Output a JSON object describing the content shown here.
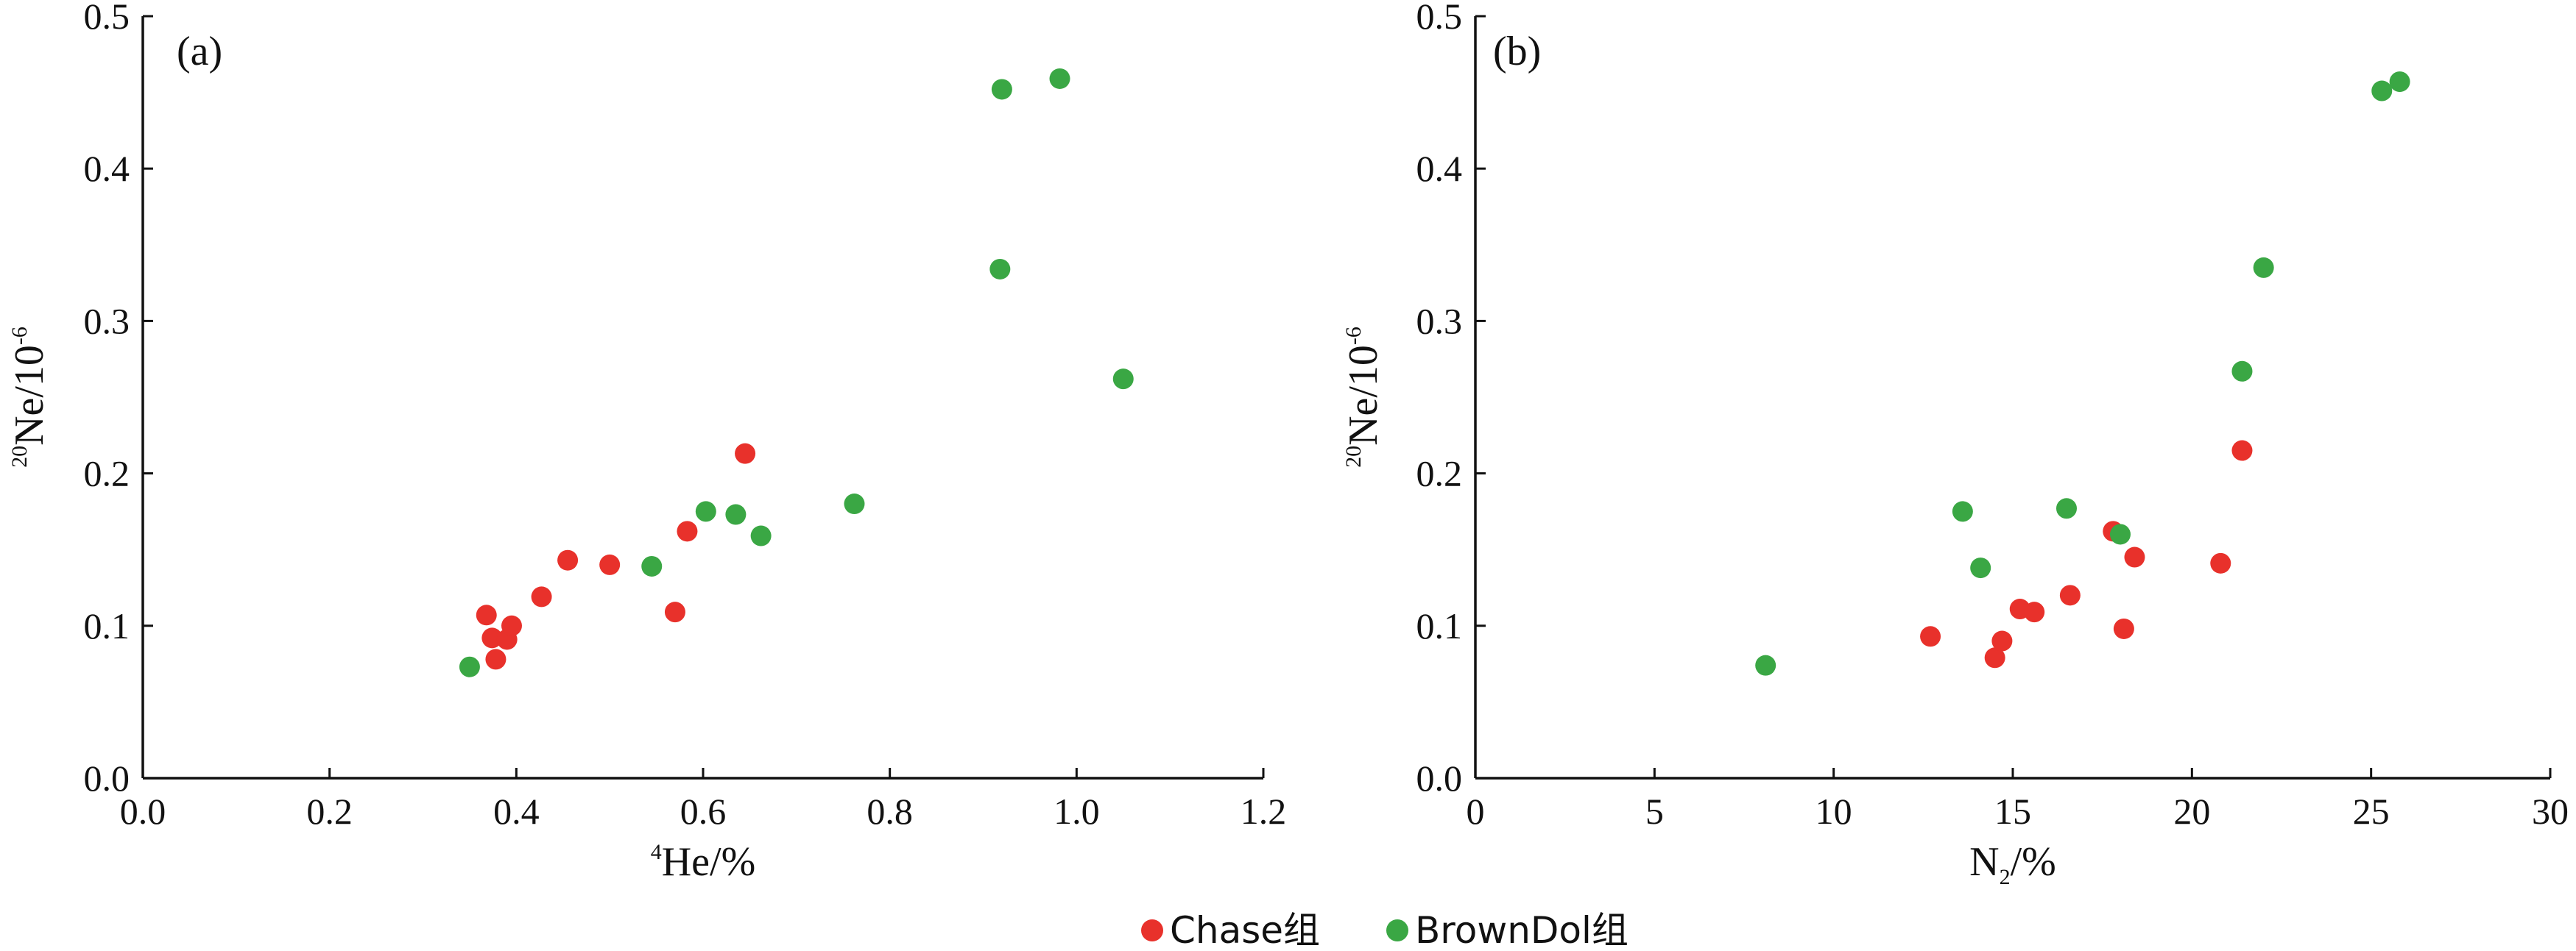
{
  "colors": {
    "chase": "#e8312b",
    "browndol": "#3aa744",
    "axis": "#111111"
  },
  "legend": {
    "items": [
      {
        "label": "Chase组",
        "color": "#e8312b"
      },
      {
        "label": "BrownDol组",
        "color": "#3aa744"
      }
    ]
  },
  "chart_data": [
    {
      "type": "scatter",
      "panel_label": "(a)",
      "ylabel": {
        "sup": "20",
        "main": "Ne/10",
        "exp": "-6"
      },
      "xlabel": {
        "sup": "4",
        "main": "He/%"
      },
      "xlim": [
        0,
        1.2
      ],
      "ylim": [
        0,
        0.5
      ],
      "xticks": [
        "0.0",
        "0.2",
        "0.4",
        "0.6",
        "0.8",
        "1.0",
        "1.2"
      ],
      "yticks": [
        "0.0",
        "0.1",
        "0.2",
        "0.3",
        "0.4",
        "0.5"
      ],
      "grid": false,
      "series": [
        {
          "name": "Chase组",
          "color": "#e8312b",
          "points": [
            [
              0.368,
              0.107
            ],
            [
              0.374,
              0.092
            ],
            [
              0.378,
              0.078
            ],
            [
              0.39,
              0.091
            ],
            [
              0.395,
              0.1
            ],
            [
              0.427,
              0.119
            ],
            [
              0.455,
              0.143
            ],
            [
              0.5,
              0.14
            ],
            [
              0.57,
              0.109
            ],
            [
              0.583,
              0.162
            ],
            [
              0.645,
              0.213
            ]
          ]
        },
        {
          "name": "BrownDol组",
          "color": "#3aa744",
          "points": [
            [
              0.35,
              0.073
            ],
            [
              0.545,
              0.139
            ],
            [
              0.603,
              0.175
            ],
            [
              0.635,
              0.173
            ],
            [
              0.662,
              0.159
            ],
            [
              0.762,
              0.18
            ],
            [
              0.918,
              0.334
            ],
            [
              0.92,
              0.452
            ],
            [
              0.982,
              0.459
            ],
            [
              1.05,
              0.262
            ]
          ]
        }
      ]
    },
    {
      "type": "scatter",
      "panel_label": "(b)",
      "ylabel": {
        "sup": "20",
        "main": "Ne/10",
        "exp": "-6"
      },
      "xlabel": {
        "main": "N",
        "sub": "2",
        "tail": "/%"
      },
      "xlim": [
        0,
        30
      ],
      "ylim": [
        0,
        0.5
      ],
      "xticks": [
        "0",
        "5",
        "10",
        "15",
        "20",
        "25",
        "30"
      ],
      "yticks": [
        "0.0",
        "0.1",
        "0.2",
        "0.3",
        "0.4",
        "0.5"
      ],
      "grid": false,
      "series": [
        {
          "name": "Chase组",
          "color": "#e8312b",
          "points": [
            [
              12.7,
              0.093
            ],
            [
              14.5,
              0.079
            ],
            [
              14.7,
              0.09
            ],
            [
              15.2,
              0.111
            ],
            [
              15.6,
              0.109
            ],
            [
              16.6,
              0.12
            ],
            [
              17.8,
              0.162
            ],
            [
              18.1,
              0.098
            ],
            [
              18.4,
              0.145
            ],
            [
              20.8,
              0.141
            ],
            [
              21.4,
              0.215
            ]
          ]
        },
        {
          "name": "BrownDol组",
          "color": "#3aa744",
          "points": [
            [
              8.1,
              0.074
            ],
            [
              13.6,
              0.175
            ],
            [
              14.1,
              0.138
            ],
            [
              16.5,
              0.177
            ],
            [
              18.0,
              0.16
            ],
            [
              21.4,
              0.267
            ],
            [
              22.0,
              0.335
            ],
            [
              25.3,
              0.451
            ],
            [
              25.8,
              0.457
            ]
          ]
        }
      ]
    }
  ]
}
